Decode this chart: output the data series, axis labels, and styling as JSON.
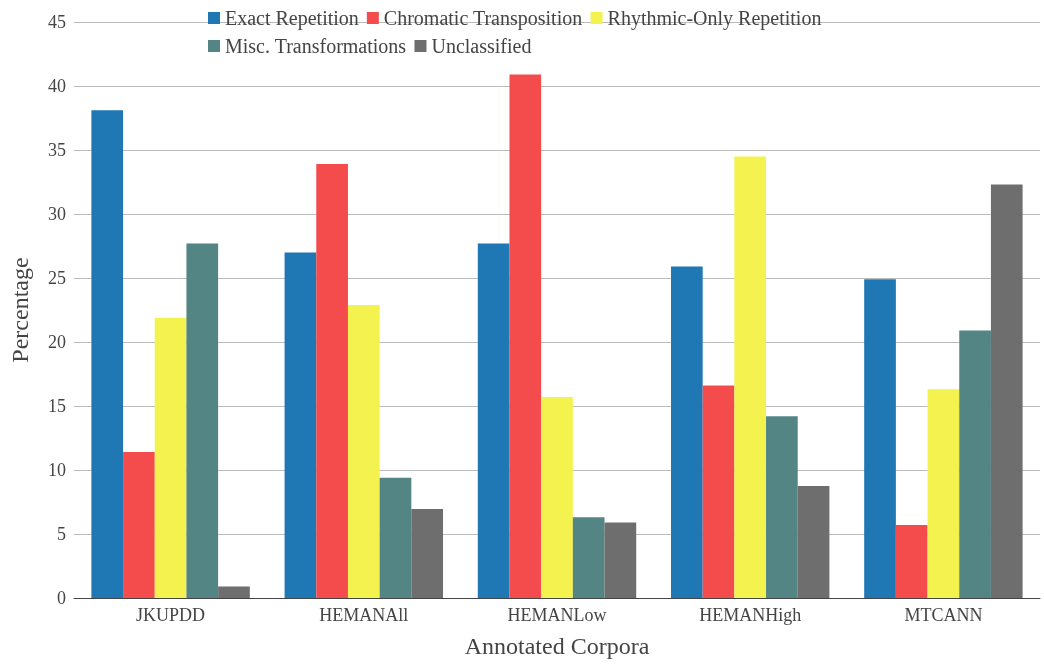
{
  "chart_data": {
    "type": "bar",
    "xlabel": "Annotated Corpora",
    "ylabel": "Percentage",
    "categories": [
      "JKUPDD",
      "HEMANAll",
      "HEMANLow",
      "HEMANHigh",
      "MTCANN"
    ],
    "series": [
      {
        "name": "Exact Repetition",
        "color": "#1f77b4",
        "values": [
          38.1,
          27.0,
          27.7,
          25.9,
          24.9
        ]
      },
      {
        "name": "Chromatic Transposition",
        "color": "#f44b4d",
        "values": [
          11.4,
          33.9,
          40.9,
          16.6,
          5.7
        ]
      },
      {
        "name": "Rhythmic-Only Repetition",
        "color": "#f3f24f",
        "values": [
          21.9,
          22.9,
          15.7,
          34.5,
          16.3
        ]
      },
      {
        "name": "Misc. Transformations",
        "color": "#528583",
        "values": [
          27.7,
          9.4,
          6.3,
          14.2,
          20.9
        ]
      },
      {
        "name": "Unclassified",
        "color": "#6e6e6e",
        "values": [
          0.9,
          6.95,
          5.9,
          8.75,
          32.3
        ]
      }
    ],
    "ylim": [
      0,
      45
    ],
    "yticks": [
      0,
      5,
      10,
      15,
      20,
      25,
      30,
      35,
      40,
      45
    ],
    "grid": "y",
    "legend": "top"
  }
}
